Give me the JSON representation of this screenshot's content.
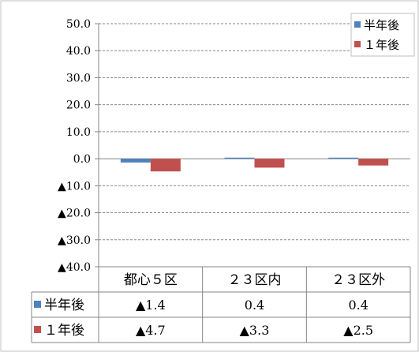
{
  "chart_data": {
    "type": "bar",
    "categories": [
      "都心５区",
      "２３区内",
      "２３区外"
    ],
    "series": [
      {
        "name": "半年後",
        "values": [
          -1.4,
          0.4,
          0.4
        ],
        "labels": [
          "▲1.4",
          "0.4",
          "0.4"
        ],
        "color": "#4f81bd"
      },
      {
        "name": "１年後",
        "values": [
          -4.7,
          -3.3,
          -2.5
        ],
        "labels": [
          "▲4.7",
          "▲3.3",
          "▲2.5"
        ],
        "color": "#c0504d"
      }
    ],
    "ylim": [
      -40,
      50
    ],
    "yticks": [
      50,
      40,
      30,
      20,
      10,
      0,
      -10,
      -20,
      -30,
      -40
    ],
    "ytick_labels": [
      "50.0",
      "40.0",
      "30.0",
      "20.0",
      "10.0",
      "0.0",
      "▲10.0",
      "▲20.0",
      "▲30.0",
      "▲40.0"
    ],
    "grid": true,
    "legend_position": "top-right",
    "data_table": true,
    "title": "",
    "xlabel": "",
    "ylabel": ""
  }
}
